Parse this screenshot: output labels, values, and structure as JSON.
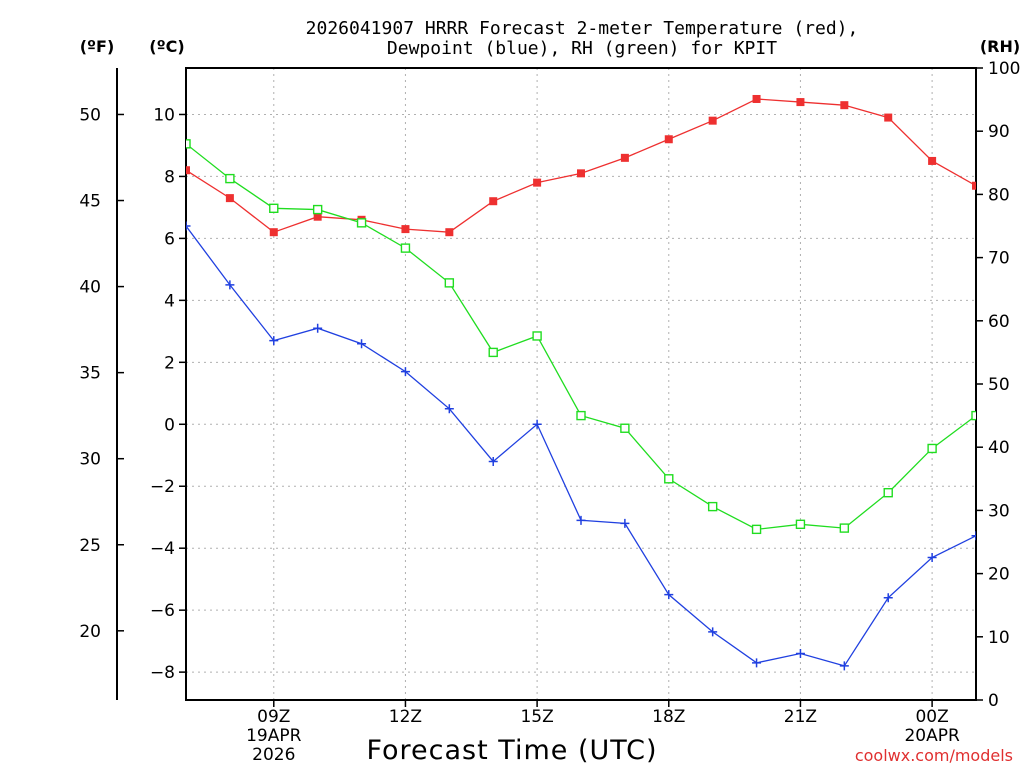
{
  "chart_data": {
    "type": "line",
    "title_line1": "2026041907 HRRR Forecast 2-meter Temperature (red),",
    "title_line2": "Dewpoint (blue), RH (green) for KPIT",
    "unit_f": "(ºF)",
    "unit_c": "(ºC)",
    "unit_rh": "(RH)",
    "xlabel": "Forecast Time (UTC)",
    "credit": "coolwx.com/models",
    "hours": [
      7,
      8,
      9,
      10,
      11,
      12,
      13,
      14,
      15,
      16,
      17,
      18,
      19,
      20,
      21,
      22,
      23,
      24,
      25
    ],
    "x_ticks": [
      {
        "hour": 9,
        "label": "09Z",
        "sub1": "19APR",
        "sub2": "2026"
      },
      {
        "hour": 12,
        "label": "12Z",
        "sub1": "",
        "sub2": ""
      },
      {
        "hour": 15,
        "label": "15Z",
        "sub1": "",
        "sub2": ""
      },
      {
        "hour": 18,
        "label": "18Z",
        "sub1": "",
        "sub2": ""
      },
      {
        "hour": 21,
        "label": "21Z",
        "sub1": "",
        "sub2": ""
      },
      {
        "hour": 24,
        "label": "00Z",
        "sub1": "20APR",
        "sub2": ""
      }
    ],
    "x_range": [
      7,
      25
    ],
    "celsius_range": [
      -8.9,
      11.5
    ],
    "celsius_ticks": [
      "10",
      "8",
      "6",
      "4",
      "2",
      "0",
      "−2",
      "−4",
      "−6",
      "−8"
    ],
    "fahrenheit_ticks": [
      "50",
      "45",
      "40",
      "35",
      "30",
      "25",
      "20"
    ],
    "rh_range": [
      0,
      100
    ],
    "rh_ticks": [
      "100",
      "90",
      "80",
      "70",
      "60",
      "50",
      "40",
      "30",
      "20",
      "10",
      "0"
    ],
    "series": [
      {
        "name": "Temperature",
        "color": "#ee3030",
        "marker": "filled-square",
        "values": [
          8.2,
          7.3,
          6.2,
          6.7,
          6.6,
          6.3,
          6.2,
          7.2,
          7.8,
          8.1,
          8.6,
          9.2,
          9.8,
          10.5,
          10.4,
          10.3,
          9.9,
          8.5,
          7.7
        ]
      },
      {
        "name": "Dewpoint",
        "color": "#2040e0",
        "marker": "plus",
        "values": [
          6.4,
          4.5,
          2.7,
          3.1,
          2.6,
          1.7,
          0.5,
          -1.2,
          0.0,
          -3.1,
          -3.2,
          -5.5,
          -6.7,
          -7.7,
          -7.4,
          -7.8,
          -5.6,
          -4.3,
          -3.6
        ]
      },
      {
        "name": "RH",
        "color": "#20dd20",
        "marker": "open-square",
        "values": [
          88,
          82.5,
          77.8,
          77.6,
          75.5,
          71.5,
          66,
          55,
          57.6,
          45,
          43,
          35,
          30.6,
          27,
          27.8,
          27.2,
          32.8,
          39.8,
          45
        ]
      }
    ]
  }
}
